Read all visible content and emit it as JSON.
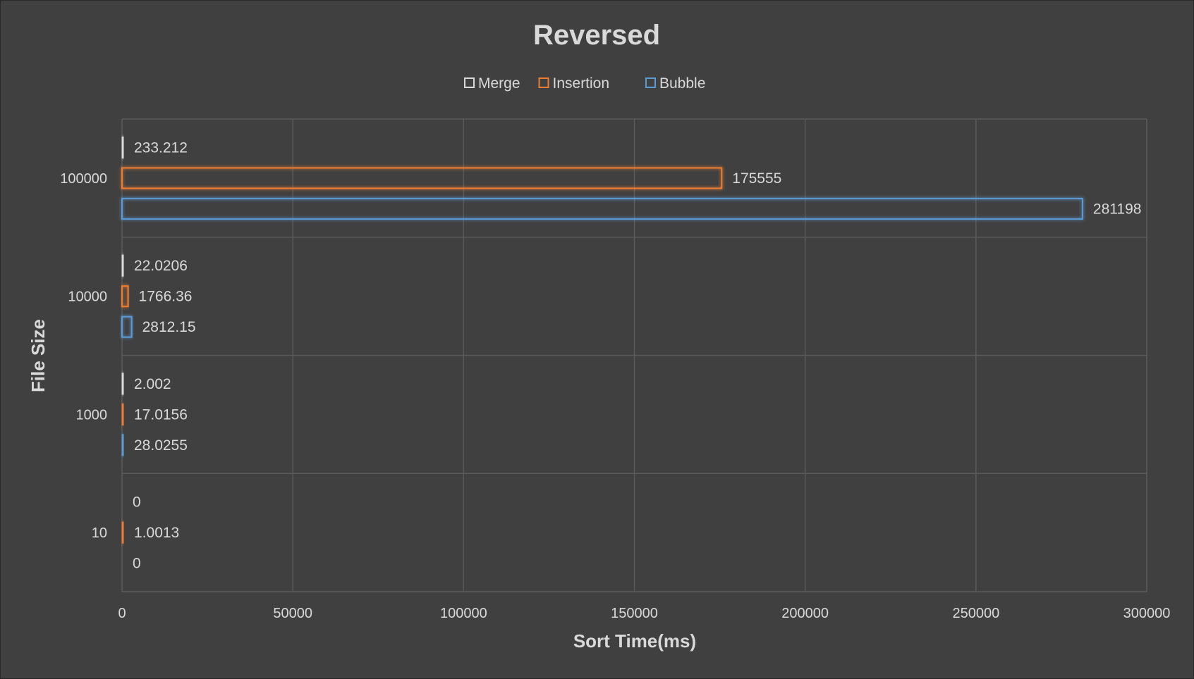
{
  "chart_data": {
    "type": "bar",
    "orientation": "horizontal",
    "title": "Reversed",
    "xlabel": "Sort Time(ms)",
    "ylabel": "File Size",
    "categories": [
      "100000",
      "10000",
      "1000",
      "10"
    ],
    "series": [
      {
        "name": "Merge",
        "color": "#d9d9d9",
        "values": [
          233.212,
          22.0206,
          2.002,
          0
        ],
        "labels": [
          "233.212",
          "22.0206",
          "2.002",
          "0"
        ]
      },
      {
        "name": "Insertion",
        "color": "#ed7d31",
        "values": [
          175555,
          1766.36,
          17.0156,
          1.0013
        ],
        "labels": [
          "175555",
          "1766.36",
          "17.0156",
          "1.0013"
        ]
      },
      {
        "name": "Bubble",
        "color": "#5b9bd5",
        "values": [
          281198,
          2812.15,
          28.0255,
          0
        ],
        "labels": [
          "281198",
          "2812.15",
          "28.0255",
          "0"
        ]
      }
    ],
    "xlim": [
      0,
      300000
    ],
    "xticks": [
      0,
      50000,
      100000,
      150000,
      200000,
      250000,
      300000
    ],
    "xtick_labels": [
      "0",
      "50000",
      "100000",
      "150000",
      "200000",
      "250000",
      "300000"
    ],
    "grid": true,
    "legend_position": "top-center",
    "background": "#404040"
  }
}
